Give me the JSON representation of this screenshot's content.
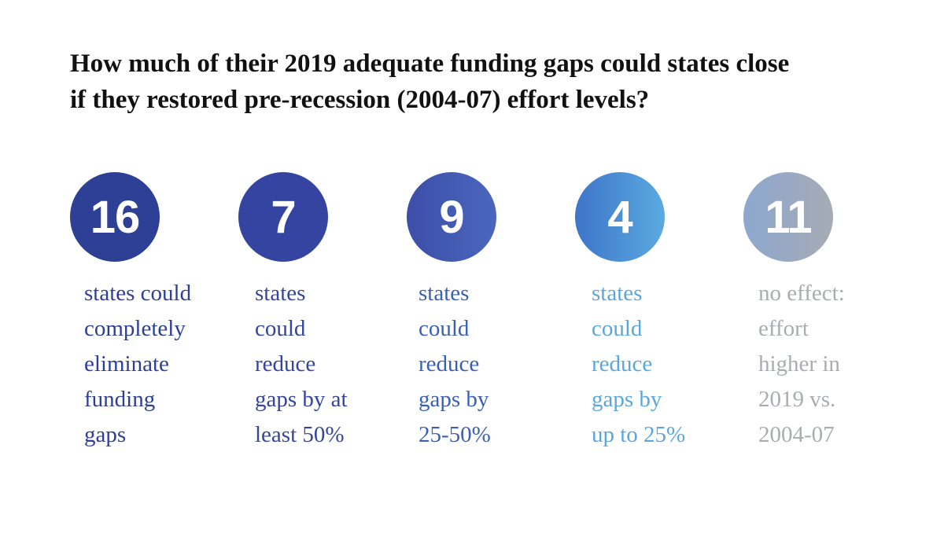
{
  "title": "How much of their 2019 adequate funding gaps could states close\nif they restored pre-recession (2004-07) effort levels?",
  "stats": [
    {
      "number": "16",
      "description": "states could\ncompletely\neliminate\nfunding\ngaps",
      "color": "#2e3f96"
    },
    {
      "number": "7",
      "description": "states\ncould\nreduce\ngaps by at\nleast 50%",
      "color": "#34459f"
    },
    {
      "number": "9",
      "description": "states\ncould\nreduce\ngaps by\n25-50%",
      "color": "#3a5fb7"
    },
    {
      "number": "4",
      "description": "states\ncould\nreduce\ngaps by\nup to 25%",
      "color": "#5aa7df"
    },
    {
      "number": "11",
      "description": "no effect:\neffort\nhigher in\n2019 vs.\n2004-07",
      "color": "#a9acb1"
    }
  ]
}
